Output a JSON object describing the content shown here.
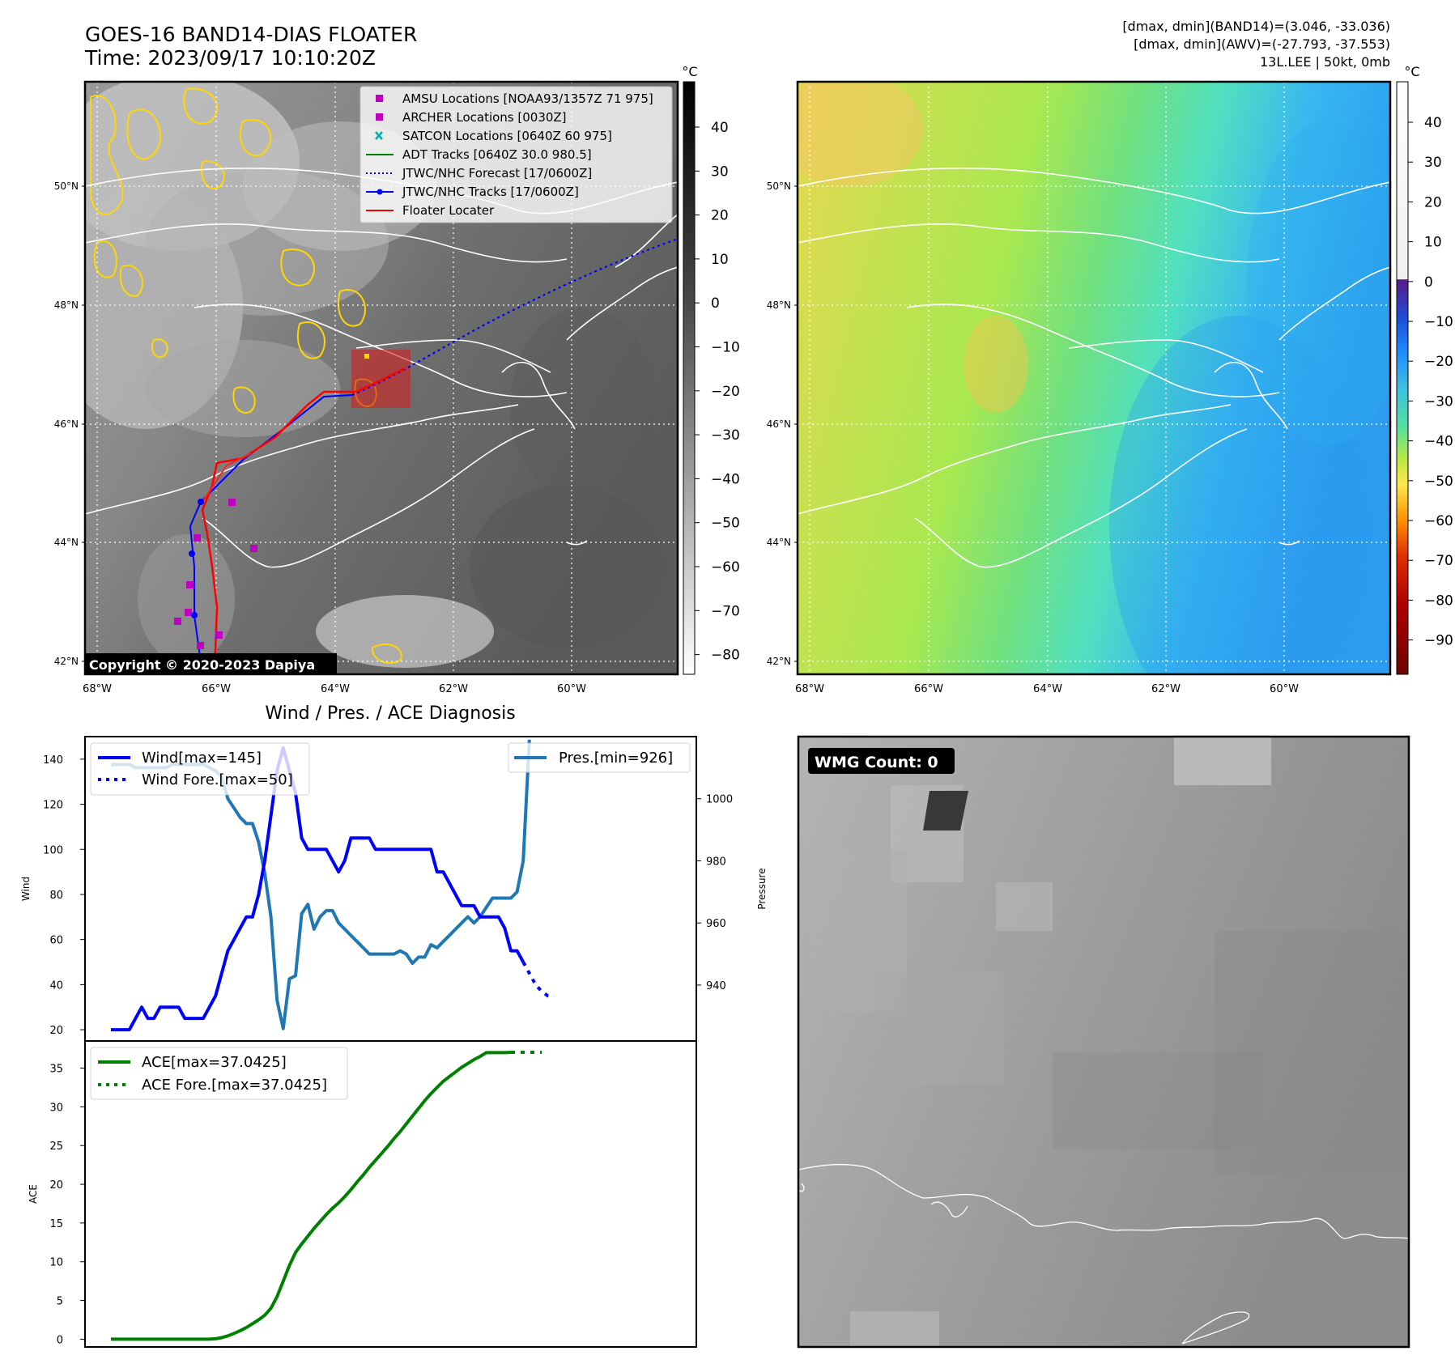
{
  "header": {
    "title_line1": "GOES-16 BAND14-DIAS FLOATER",
    "title_line2": "Time: 2023/09/17 10:10:20Z",
    "right_line1": "[dmax, dmin](BAND14)=(3.046, -33.036)",
    "right_line2": "[dmax, dmin](AWV)=(-27.793, -37.553)",
    "right_line3": "13L.LEE | 50kt, 0mb"
  },
  "map": {
    "unit_label": "°C",
    "lat_labels": [
      "50°N",
      "48°N",
      "46°N",
      "44°N",
      "42°N"
    ],
    "lon_labels": [
      "68°W",
      "66°W",
      "64°W",
      "62°W",
      "60°W"
    ],
    "left_cbar_ticks": [
      "40",
      "30",
      "20",
      "10",
      "0",
      "−10",
      "−20",
      "−30",
      "−40",
      "−50",
      "−60",
      "−70",
      "−80"
    ],
    "right_cbar_ticks": [
      "40",
      "30",
      "20",
      "10",
      "0",
      "−10",
      "−20",
      "−30",
      "−40",
      "−50",
      "−60",
      "−70",
      "−80",
      "−90"
    ],
    "copyright": "Copyright © 2020-2023 Dapiya",
    "legend": [
      {
        "label": "AMSU Locations [NOAA93/1357Z 71 975]",
        "color": "#c000c0",
        "kind": "square"
      },
      {
        "label": "ARCHER Locations [0030Z]",
        "color": "#c000c0",
        "kind": "square"
      },
      {
        "label": "SATCON Locations [0640Z 60 975]",
        "color": "#00b0b0",
        "kind": "cross"
      },
      {
        "label": "ADT Tracks [0640Z 30.0 980.5]",
        "color": "#008000",
        "kind": "line"
      },
      {
        "label": "JTWC/NHC Forecast [17/0600Z]",
        "color": "#0000ff",
        "kind": "dotted"
      },
      {
        "label": "JTWC/NHC Tracks [17/0600Z]",
        "color": "#0000ff",
        "kind": "linedot"
      },
      {
        "label": "Floater Locater",
        "color": "#ff0000",
        "kind": "line"
      }
    ]
  },
  "diagnosis": {
    "title": "Wind / Pres. / ACE Diagnosis",
    "wind_ylabel": "Wind",
    "pres_ylabel": "Pressure",
    "ace_ylabel": "ACE",
    "wind_ticks": [
      "140",
      "120",
      "100",
      "80",
      "60",
      "40",
      "20"
    ],
    "pres_ticks": [
      "1000",
      "980",
      "960",
      "940"
    ],
    "ace_ticks": [
      "35",
      "30",
      "25",
      "20",
      "15",
      "10",
      "5",
      "0"
    ],
    "legend_wind": "Wind[max=145]",
    "legend_wind_fore": "Wind Fore.[max=50]",
    "legend_pres": "Pres.[min=926]",
    "legend_ace": "ACE[max=37.0425]",
    "legend_ace_fore": "ACE Fore.[max=37.0425]",
    "colors": {
      "wind": "#0000ff",
      "pres": "#1f77b4",
      "ace": "#008000"
    }
  },
  "wmg": {
    "label": "WMG Count: 0"
  },
  "chart_data": [
    {
      "type": "line",
      "title": "Wind / Pres. / ACE Diagnosis",
      "ylabel": "Wind",
      "ylim": [
        15,
        150
      ],
      "series": [
        {
          "name": "Wind[max=145]",
          "values": [
            20,
            20,
            20,
            20,
            25,
            30,
            25,
            25,
            30,
            30,
            30,
            30,
            25,
            25,
            25,
            25,
            30,
            35,
            45,
            55,
            60,
            65,
            70,
            70,
            80,
            95,
            115,
            135,
            145,
            135,
            125,
            105,
            100,
            100,
            100,
            100,
            95,
            90,
            95,
            105,
            105,
            105,
            105,
            100,
            100,
            100,
            100,
            100,
            100,
            100,
            100,
            100,
            100,
            90,
            90,
            85,
            80,
            75,
            75,
            75,
            70,
            70,
            70,
            70,
            65,
            55,
            55,
            50
          ]
        },
        {
          "name": "Wind Fore.[max=50]",
          "values": [
            50,
            45,
            40,
            37,
            35,
            35
          ]
        }
      ]
    },
    {
      "type": "line",
      "ylabel": "Pressure",
      "ylim": [
        922,
        1020
      ],
      "series": [
        {
          "name": "Pres.[min=926]",
          "values": [
            1011,
            1011,
            1011,
            1011,
            1010,
            1010,
            1010,
            1010,
            1010,
            1010,
            1011,
            1011,
            1011,
            1011,
            1011,
            1011,
            1010,
            1009,
            1007,
            1000,
            997,
            994,
            992,
            992,
            986,
            976,
            962,
            935,
            926,
            942,
            943,
            963,
            966,
            958,
            962,
            964,
            964,
            960,
            958,
            956,
            954,
            952,
            950,
            950,
            950,
            950,
            950,
            951,
            950,
            947,
            949,
            949,
            953,
            952,
            954,
            956,
            958,
            960,
            962,
            960,
            962,
            965,
            968,
            968,
            968,
            968,
            970,
            980,
            1019
          ]
        }
      ]
    },
    {
      "type": "line",
      "ylabel": "ACE",
      "ylim": [
        -1,
        38.5
      ],
      "series": [
        {
          "name": "ACE[max=37.0425]",
          "values": [
            0,
            0,
            0,
            0,
            0,
            0,
            0,
            0,
            0,
            0,
            0,
            0,
            0,
            0,
            0,
            0,
            0,
            0.06,
            0.2,
            0.43,
            0.74,
            1.1,
            1.5,
            2.0,
            2.5,
            3.1,
            4.0,
            5.5,
            7.5,
            9.5,
            11.2,
            12.3,
            13.3,
            14.3,
            15.2,
            16.1,
            16.9,
            17.6,
            18.4,
            19.3,
            20.3,
            21.2,
            22.2,
            23.1,
            24.0,
            24.9,
            25.9,
            26.8,
            27.8,
            28.8,
            29.8,
            30.8,
            31.7,
            32.5,
            33.3,
            33.9,
            34.5,
            35.1,
            35.6,
            36.1,
            36.5,
            37.0,
            37.0,
            37.0,
            37.0,
            37.04
          ]
        },
        {
          "name": "ACE Fore.[max=37.0425]",
          "values": [
            37.04,
            37.04,
            37.04,
            37.04,
            37.04,
            37.04
          ]
        }
      ]
    }
  ]
}
